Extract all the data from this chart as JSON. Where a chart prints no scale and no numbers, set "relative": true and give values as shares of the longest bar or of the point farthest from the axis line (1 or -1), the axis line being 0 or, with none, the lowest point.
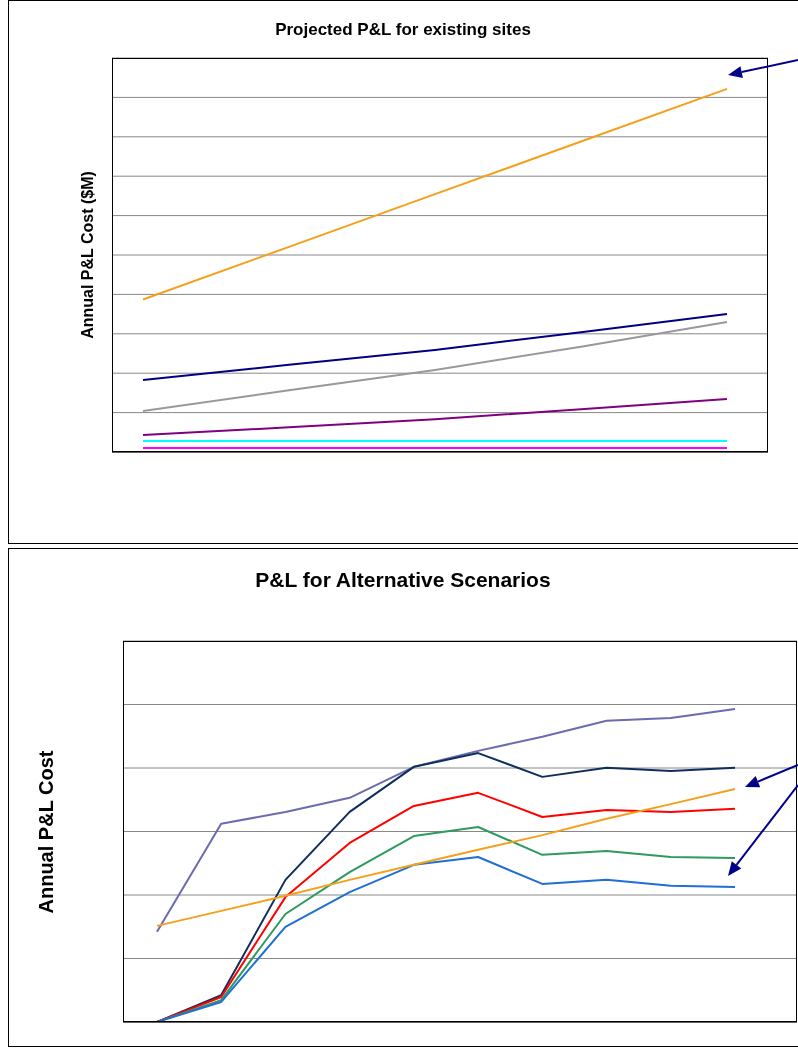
{
  "chart_data": [
    {
      "type": "line",
      "title": "Projected P&L for existing sites",
      "ylabel": "Annual P&L Cost ($M)",
      "relative": true,
      "grid": "y",
      "marker": "none",
      "categories": [
        null,
        null,
        null,
        null,
        null
      ],
      "series": [
        {
          "color": "#f5a01a",
          "values": [
            0.42,
            0.565,
            0.71,
            0.855,
            1.0
          ]
        },
        {
          "color": "#000080",
          "values": [
            0.198,
            0.24,
            0.281,
            0.33,
            0.38
          ]
        },
        {
          "color": "#999999",
          "values": [
            0.113,
            0.17,
            0.226,
            0.29,
            0.358
          ]
        },
        {
          "color": "#800080",
          "values": [
            0.047,
            0.068,
            0.09,
            0.118,
            0.146
          ]
        },
        {
          "color": "#00ffff",
          "values": [
            0.03,
            0.03,
            0.03,
            0.03,
            0.03
          ]
        },
        {
          "color": "#ff00ff",
          "values": [
            0.011,
            0.011,
            0.011,
            0.011,
            0.011
          ]
        }
      ]
    },
    {
      "type": "line",
      "title": "P&L for Alternative Scenarios",
      "ylabel": "Annual P&L Cost",
      "relative": true,
      "grid": "y",
      "marker": "none",
      "categories": [
        null,
        null,
        null,
        null,
        null,
        null,
        null,
        null,
        null,
        null
      ],
      "series": [
        {
          "color": "#6b6baf",
          "values": [
            0.288,
            0.633,
            0.671,
            0.716,
            0.815,
            0.866,
            0.911,
            0.962,
            0.971,
            1.0
          ]
        },
        {
          "color": "#0f2e5c",
          "values": [
            0,
            0.086,
            0.454,
            0.671,
            0.815,
            0.859,
            0.783,
            0.812,
            0.802,
            0.812
          ]
        },
        {
          "color": "#ff0000",
          "values": [
            0,
            0.08,
            0.399,
            0.572,
            0.69,
            0.732,
            0.655,
            0.677,
            0.671,
            0.681
          ]
        },
        {
          "color": "#2e9a5e",
          "values": [
            0,
            0.07,
            0.345,
            0.479,
            0.594,
            0.623,
            0.534,
            0.546,
            0.527,
            0.524
          ]
        },
        {
          "color": "#1f6fd4",
          "values": [
            0,
            0.064,
            0.304,
            0.415,
            0.502,
            0.527,
            0.441,
            0.454,
            0.435,
            0.431
          ]
        },
        {
          "color": "#f5a01a",
          "values": [
            0.307,
            0.355,
            0.403,
            0.454,
            0.502,
            0.55,
            0.597,
            0.649,
            0.696,
            0.744
          ]
        }
      ]
    }
  ]
}
